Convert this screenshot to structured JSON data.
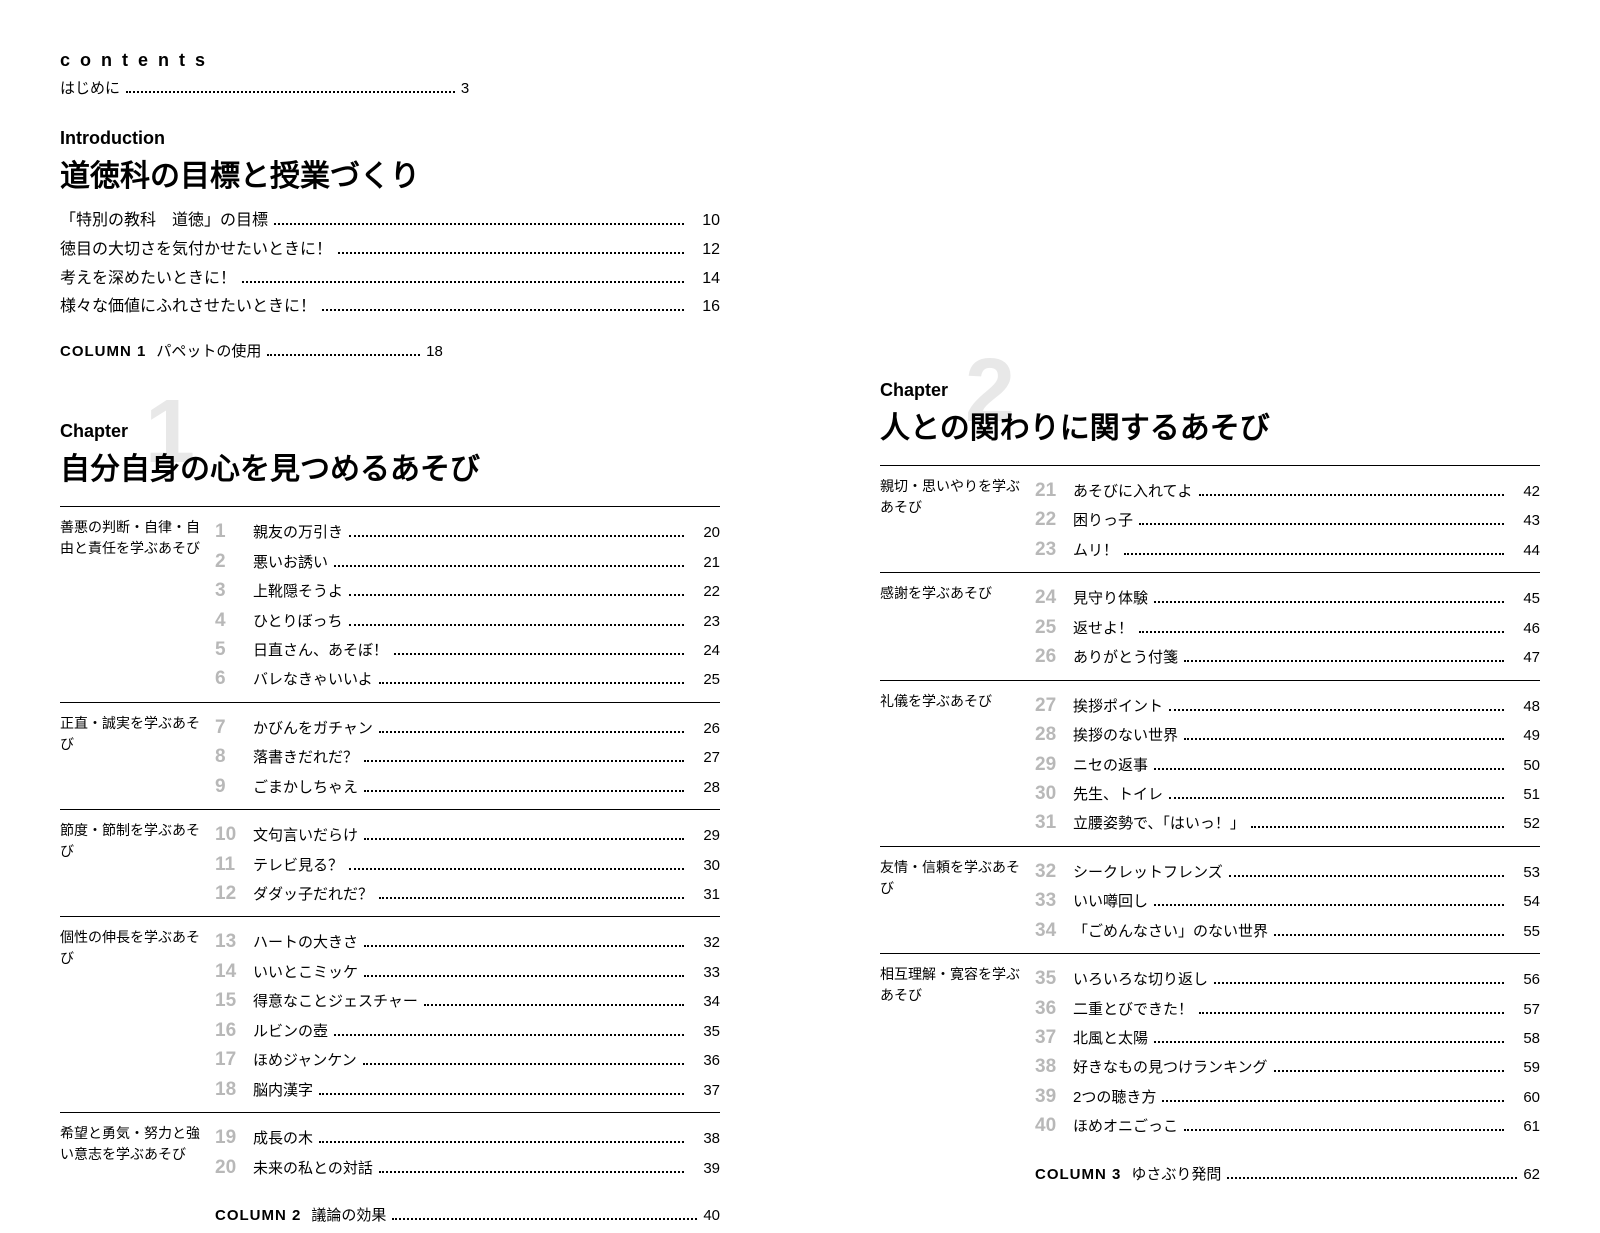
{
  "contents_label": "contents",
  "hajimeni": {
    "label": "はじめに",
    "page": "3"
  },
  "intro": {
    "label": "Introduction",
    "title": "道徳科の目標と授業づくり",
    "rows": [
      {
        "label": "「特別の教科　道徳」の目標",
        "page": "10"
      },
      {
        "label": "徳目の大切さを気付かせたいときに！",
        "page": "12"
      },
      {
        "label": "考えを深めたいときに！",
        "page": "14"
      },
      {
        "label": "様々な価値にふれさせたいときに！",
        "page": "16"
      }
    ]
  },
  "column1": {
    "label": "COLUMN 1",
    "title": "パペットの使用",
    "page": "18"
  },
  "chapter1": {
    "label": "Chapter",
    "num": "1",
    "title": "自分自身の心を見つめるあそび",
    "sections": [
      {
        "cat": "善悪の判断・自律・自由と責任を学ぶあそび",
        "items": [
          {
            "n": "1",
            "t": "親友の万引き",
            "p": "20"
          },
          {
            "n": "2",
            "t": "悪いお誘い",
            "p": "21"
          },
          {
            "n": "3",
            "t": "上靴隠そうよ",
            "p": "22"
          },
          {
            "n": "4",
            "t": "ひとりぼっち",
            "p": "23"
          },
          {
            "n": "5",
            "t": "日直さん、あそぼ！",
            "p": "24"
          },
          {
            "n": "6",
            "t": "バレなきゃいいよ",
            "p": "25"
          }
        ]
      },
      {
        "cat": "正直・誠実を学ぶあそび",
        "items": [
          {
            "n": "7",
            "t": "かびんをガチャン",
            "p": "26"
          },
          {
            "n": "8",
            "t": "落書きだれだ？",
            "p": "27"
          },
          {
            "n": "9",
            "t": "ごまかしちゃえ",
            "p": "28"
          }
        ]
      },
      {
        "cat": "節度・節制を学ぶあそび",
        "items": [
          {
            "n": "10",
            "t": "文句言いだらけ",
            "p": "29"
          },
          {
            "n": "11",
            "t": "テレビ見る？",
            "p": "30"
          },
          {
            "n": "12",
            "t": "ダダッ子だれだ？",
            "p": "31"
          }
        ]
      },
      {
        "cat": "個性の伸長を学ぶあそび",
        "items": [
          {
            "n": "13",
            "t": "ハートの大きさ",
            "p": "32"
          },
          {
            "n": "14",
            "t": "いいとこミッケ",
            "p": "33"
          },
          {
            "n": "15",
            "t": "得意なことジェスチャー",
            "p": "34"
          },
          {
            "n": "16",
            "t": "ルビンの壺",
            "p": "35"
          },
          {
            "n": "17",
            "t": "ほめジャンケン",
            "p": "36"
          },
          {
            "n": "18",
            "t": "脳内漢字",
            "p": "37"
          }
        ]
      },
      {
        "cat": "希望と勇気・努力と強い意志を学ぶあそび",
        "items": [
          {
            "n": "19",
            "t": "成長の木",
            "p": "38"
          },
          {
            "n": "20",
            "t": "未来の私との対話",
            "p": "39"
          }
        ]
      }
    ]
  },
  "column2": {
    "label": "COLUMN 2",
    "title": "議論の効果",
    "page": "40"
  },
  "chapter2": {
    "label": "Chapter",
    "num": "2",
    "title": "人との関わりに関するあそび",
    "sections": [
      {
        "cat": "親切・思いやりを学ぶあそび",
        "items": [
          {
            "n": "21",
            "t": "あそびに入れてよ",
            "p": "42"
          },
          {
            "n": "22",
            "t": "困りっ子",
            "p": "43"
          },
          {
            "n": "23",
            "t": "ムリ！",
            "p": "44"
          }
        ]
      },
      {
        "cat": "感謝を学ぶあそび",
        "items": [
          {
            "n": "24",
            "t": "見守り体験",
            "p": "45"
          },
          {
            "n": "25",
            "t": "返せよ！",
            "p": "46"
          },
          {
            "n": "26",
            "t": "ありがとう付箋",
            "p": "47"
          }
        ]
      },
      {
        "cat": "礼儀を学ぶあそび",
        "items": [
          {
            "n": "27",
            "t": "挨拶ポイント",
            "p": "48"
          },
          {
            "n": "28",
            "t": "挨拶のない世界",
            "p": "49"
          },
          {
            "n": "29",
            "t": "ニセの返事",
            "p": "50"
          },
          {
            "n": "30",
            "t": "先生、トイレ",
            "p": "51"
          },
          {
            "n": "31",
            "t": "立腰姿勢で、「はいっ！」",
            "p": "52"
          }
        ]
      },
      {
        "cat": "友情・信頼を学ぶあそび",
        "items": [
          {
            "n": "32",
            "t": "シークレットフレンズ",
            "p": "53"
          },
          {
            "n": "33",
            "t": "いい噂回し",
            "p": "54"
          },
          {
            "n": "34",
            "t": "「ごめんなさい」のない世界",
            "p": "55"
          }
        ]
      },
      {
        "cat": "相互理解・寛容を学ぶあそび",
        "items": [
          {
            "n": "35",
            "t": "いろいろな切り返し",
            "p": "56"
          },
          {
            "n": "36",
            "t": "二重とびできた！",
            "p": "57"
          },
          {
            "n": "37",
            "t": "北風と太陽",
            "p": "58"
          },
          {
            "n": "38",
            "t": "好きなもの見つけランキング",
            "p": "59"
          },
          {
            "n": "39",
            "t": "2つの聴き方",
            "p": "60"
          },
          {
            "n": "40",
            "t": "ほめオニごっこ",
            "p": "61"
          }
        ]
      }
    ]
  },
  "column3": {
    "label": "COLUMN 3",
    "title": "ゆさぶり発問",
    "page": "62"
  },
  "colors": {
    "text": "#000000",
    "ghost_num": "#e8e8e8",
    "item_num": "#b8b8b8",
    "background": "#ffffff"
  },
  "fonts": {
    "body_size_pt": 11,
    "title_size_pt": 22,
    "chapter_num_size_pt": 68
  }
}
